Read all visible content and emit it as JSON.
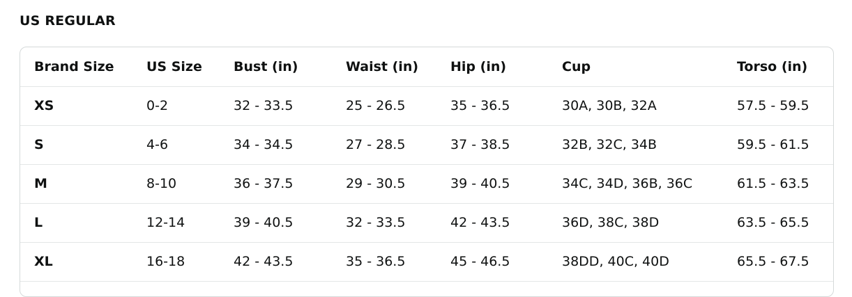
{
  "section": {
    "title": "US REGULAR"
  },
  "table": {
    "headers": [
      "Brand Size",
      "US Size",
      "Bust (in)",
      "Waist (in)",
      "Hip (in)",
      "Cup",
      "Torso (in)"
    ],
    "rows": [
      [
        "XS",
        "0-2",
        "32 - 33.5",
        "25 - 26.5",
        "35 - 36.5",
        "30A, 30B, 32A",
        "57.5 - 59.5"
      ],
      [
        "S",
        "4-6",
        "34 - 34.5",
        "27 - 28.5",
        "37 - 38.5",
        "32B, 32C, 34B",
        "59.5 - 61.5"
      ],
      [
        "M",
        "8-10",
        "36 - 37.5",
        "29 - 30.5",
        "39 - 40.5",
        "34C, 34D, 36B, 36C",
        "61.5 - 63.5"
      ],
      [
        "L",
        "12-14",
        "39 - 40.5",
        "32 - 33.5",
        "42 - 43.5",
        "36D, 38C, 38D",
        "63.5 - 65.5"
      ],
      [
        "XL",
        "16-18",
        "42 - 43.5",
        "35 - 36.5",
        "45 - 46.5",
        "38DD, 40C, 40D",
        "65.5 - 67.5"
      ]
    ]
  }
}
